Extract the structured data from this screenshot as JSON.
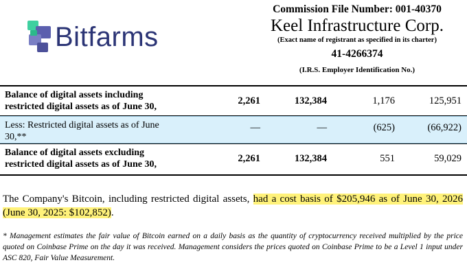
{
  "logo": {
    "text": "Bitfarms",
    "icon": "bitfarms-mark-icon",
    "colors": {
      "text": "#2b3475",
      "mark_primary": "#5b5fae",
      "mark_accent": "#3fd0a0"
    }
  },
  "header": {
    "commission_file": "Commission File Number: 001-40370",
    "company": "Keel Infrastructure Corp.",
    "exact_name_note": "(Exact name of registrant as specified in its charter)",
    "ein": "41-4266374",
    "ein_label": "(I.R.S. Employer Identification No.)"
  },
  "table": {
    "rows": [
      {
        "label": "Balance of digital assets including restricted digital assets as of June 30,",
        "values": [
          "2,261",
          "132,384",
          "1,176",
          "125,951"
        ]
      },
      {
        "label": "Less: Restricted digital assets as of June 30,**",
        "values": [
          "—",
          "—",
          "(625)",
          "(66,922)"
        ]
      },
      {
        "label": "Balance of digital assets excluding restricted digital assets as of June 30,",
        "values": [
          "2,261",
          "132,384",
          "551",
          "59,029"
        ]
      }
    ]
  },
  "paragraph": {
    "before": "The Company's Bitcoin, including restricted digital assets, ",
    "highlight": "had a cost basis of $205,946 as of June 30, 2026 (June 30, 2025: $102,852)",
    "after": "."
  },
  "footnote": "* Management estimates the fair value of Bitcoin earned on a daily basis as the quantity of cryptocurrency received multiplied by the price quoted on Coinbase Prime on the day it was received. Management considers the prices quoted on Coinbase Prime to be a Level 1 input under ASC 820, Fair Value Measurement.",
  "colors": {
    "highlight": "#fff27a",
    "row_highlight": "#d9f0fb"
  }
}
